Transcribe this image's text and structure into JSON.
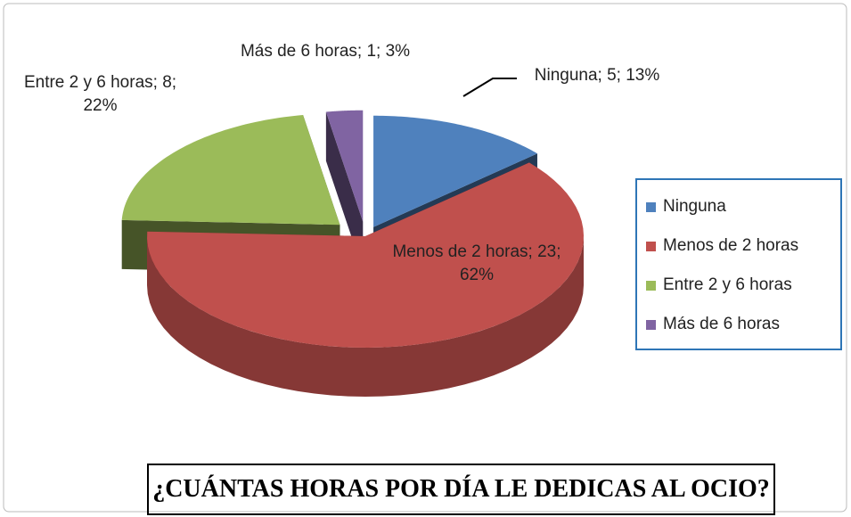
{
  "chart_data": {
    "type": "pie3d",
    "title": "¿CUÁNTAS HORAS POR DÍA LE DEDICAS AL OCIO?",
    "categories": [
      "Ninguna",
      "Menos de 2 horas",
      "Entre 2 y 6 horas",
      "Más de 6 horas"
    ],
    "values": [
      5,
      23,
      8,
      1
    ],
    "value_labels": [
      "Ninguna; 5; 13%",
      "Menos de 2 horas; 23; 62%",
      "Entre 2 y 6 horas; 8; 22%",
      "Más de 6 horas; 1; 3%"
    ],
    "colors": [
      "#4f81bd",
      "#c0504d",
      "#9bbb59",
      "#8064a2"
    ],
    "legend": "right"
  }
}
